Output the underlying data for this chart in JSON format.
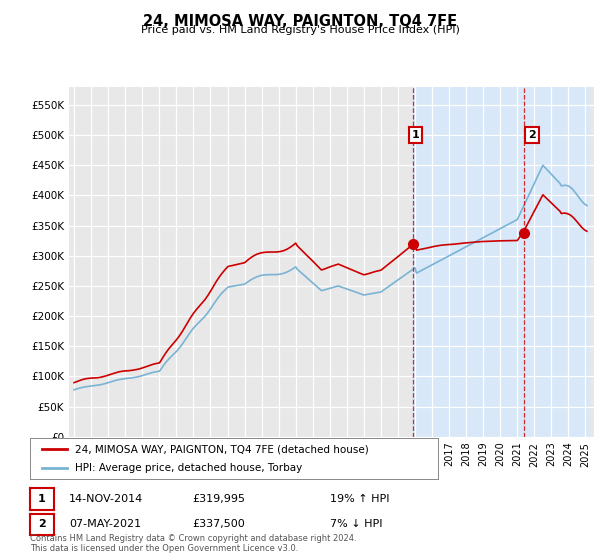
{
  "title": "24, MIMOSA WAY, PAIGNTON, TQ4 7FE",
  "subtitle": "Price paid vs. HM Land Registry's House Price Index (HPI)",
  "ylabel_ticks": [
    "£0",
    "£50K",
    "£100K",
    "£150K",
    "£200K",
    "£250K",
    "£300K",
    "£350K",
    "£400K",
    "£450K",
    "£500K",
    "£550K"
  ],
  "ytick_values": [
    0,
    50000,
    100000,
    150000,
    200000,
    250000,
    300000,
    350000,
    400000,
    450000,
    500000,
    550000
  ],
  "ylim": [
    0,
    580000
  ],
  "hpi_color": "#7ab3d4",
  "price_color": "#cc0000",
  "sale1_year": 2014.88,
  "sale2_year": 2021.37,
  "sale1_price": 319995,
  "sale2_price": 337500,
  "sale1_date": "14-NOV-2014",
  "sale2_date": "07-MAY-2021",
  "sale1_pct": "19% ↑ HPI",
  "sale2_pct": "7% ↓ HPI",
  "legend_line1": "24, MIMOSA WAY, PAIGNTON, TQ4 7FE (detached house)",
  "legend_line2": "HPI: Average price, detached house, Torbay",
  "footnote": "Contains HM Land Registry data © Crown copyright and database right 2024.\nThis data is licensed under the Open Government Licence v3.0.",
  "background_color": "#ffffff",
  "plot_bg_color": "#e8e8e8",
  "grid_color": "#ffffff",
  "shade_color": "#d8e8f8"
}
